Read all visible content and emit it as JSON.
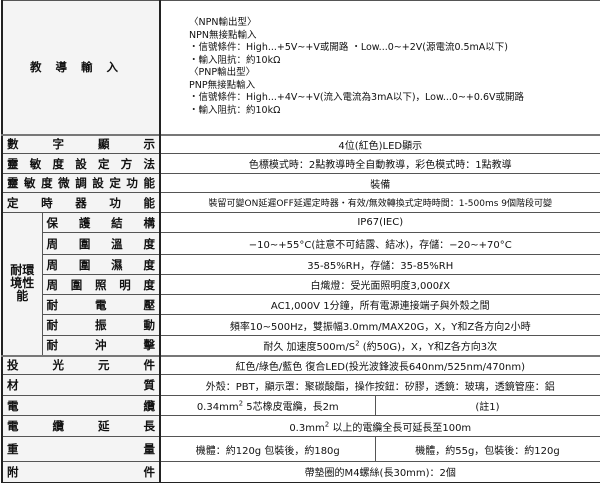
{
  "rows": {
    "teach": {
      "label": "教導輸入",
      "lines": [
        "〈NPN輸出型〉",
        "NPN無接點輸入",
        "・信號條件：High...+5V~+V或開路 ・Low...0~+2V(源電流0.5mA以下)",
        "・輸入阻抗：約10kΩ",
        "〈PNP輸出型〉",
        "PNP無接點輸入",
        "・信號條件：High...+4V~+V(流入電流為3mA以下)，Low...0~+0.6V或開路",
        "・輸入阻抗：約10kΩ"
      ]
    },
    "display": {
      "label": "數字顯示",
      "value": "4位(紅色)LED顯示"
    },
    "sens_method": {
      "label": "靈敏度設定方法",
      "value": "色標模式時：2點教導時全自動教導，彩色模式時：1點教導"
    },
    "sens_fine": {
      "label": "靈敏度微調設定功能",
      "value": "裝備"
    },
    "timer": {
      "label": "定時器功能",
      "value": "裝留可變ON延遲OFF延遲定時器・有效/無效轉換式定時時間：1-500ms 9個階段可變"
    },
    "env": {
      "label": "耐環境性能",
      "items": [
        {
          "label": "保護結構",
          "value": "IP67(IEC)"
        },
        {
          "label": "周圍溫度",
          "value": "−10~+55°C(註意不可結露、結冰)，存儲：−20~+70°C"
        },
        {
          "label": "周圍濕度",
          "value": "35-85%RH，存儲：35-85%RH"
        },
        {
          "label": "周圍照明度",
          "value": "白熾燈：受光面照明度3,000ℓX"
        },
        {
          "label": "耐電壓",
          "value": "AC1,000V 1分鐘，所有電源連接端子與外殼之間"
        },
        {
          "label": "耐振動",
          "value": "頻率10~500Hz，雙振幅3.0mm/MAX20G，X，Y和Z各方向2小時"
        },
        {
          "label": "耐沖擊",
          "value_pre": "耐久 加速度500m/S",
          "value_sup": "2",
          "value_post": " (約50G)，X，Y和Z各方向3次"
        }
      ]
    },
    "emitter": {
      "label": "投光元件",
      "value": "紅色/綠色/藍色 復合LED(投光波鋒波長640nm/525nm/470nm)"
    },
    "material": {
      "label": "材質",
      "value": "外殼：PBT，顯示罩：聚碳酸酯，操作按鈕：矽膠，透鏡：玻璃，透鏡管座：鋁"
    },
    "cable": {
      "label": "電纜",
      "value_a_pre": "0.34mm",
      "value_a_sup": "2",
      "value_a_post": " 5芯橡皮電纜，長2m",
      "value_b": "(註1)"
    },
    "cable_ext": {
      "label": "電纜延長",
      "value_pre": "0.3mm",
      "value_sup": "2",
      "value_post": " 以上的電纜全長可延長至100m"
    },
    "weight": {
      "label": "重量",
      "value_a": "機體：約120g 包裝後，約180g",
      "value_b": "機體，約55g，包裝後：約120g"
    },
    "accessory": {
      "label": "附件",
      "value": "帶墊圈的M4螺絲(長30mm)：2個"
    }
  }
}
